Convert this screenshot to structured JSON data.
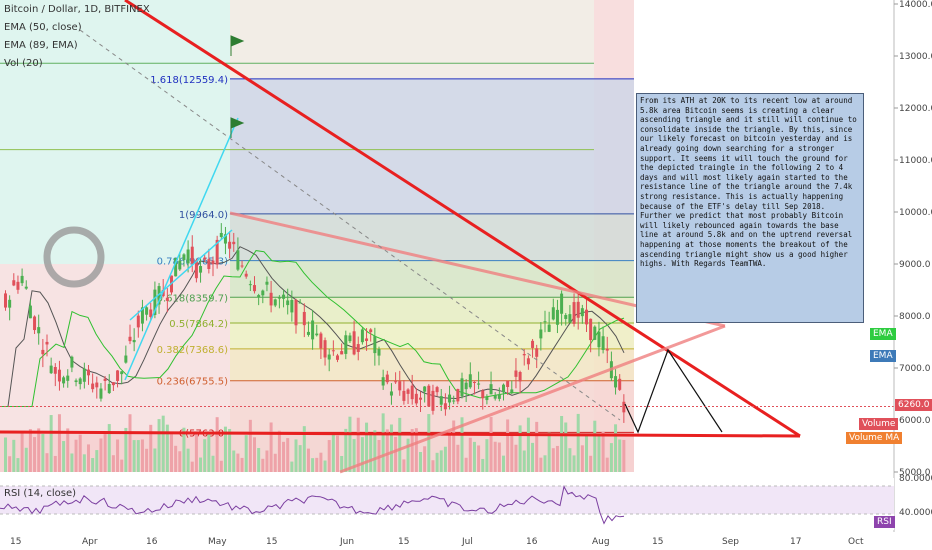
{
  "header": {
    "symbol_title": "Bitcoin / Dollar, 1D, BITFINEX",
    "ema50_label": "EMA (50, close)",
    "ema89_label": "EMA (89, EMA)",
    "vol_label": "Vol (20)",
    "rsi_label": "RSI (14, close)"
  },
  "note_text": "From its ATH at 20K to its recent low at around 5.8k area Bitcoin seems is creating a clear ascending triangle and it still will continue to consolidate inside the triangle. By this, since our likely forecast on bitcoin yesterday and is already going down searching for a stronger support. It seems it will touch the ground for the depicted traingle in the following 2 to 4 days and will most likely again started to the resistance line of the triangle around the 7.4k strong resistance. This is actually happening because of the ETF's delay till Sep 2018. Further we predict that most probably Bitcoin will likely rebounced again towards the base line at around 5.8k and on the uptrend reversal happening at those moments the breakout of the ascending triangle might show us a good higher highs. With Regards TeamTWA.",
  "tags": {
    "ema1": "EMA",
    "ema2": "EMA",
    "price": "6260.0",
    "volume": "Volume",
    "volume_ma": "Volume MA",
    "rsi": "RSI"
  },
  "colors": {
    "up": "#4caf50",
    "down": "#e0505a",
    "trend_red": "#e82020",
    "ema50": "#555555",
    "ema89": "#30c030",
    "rsi_line": "#7b3fa0",
    "note_bg": "#b7cce6",
    "price_tag": "#e0505a",
    "ema_tag_green": "#2ecc40",
    "ema_tag_blue": "#3d7ab8",
    "volume_ma_tag": "#f08030",
    "rsi_tag": "#8e44ad"
  },
  "chart_data": {
    "type": "candlestick",
    "y_axis_ticks": [
      "14000.0",
      "13000.0",
      "12000.0",
      "11000.0",
      "10000.0",
      "9000.0",
      "8000.0",
      "7000.0",
      "6000.0",
      "5000.0"
    ],
    "ylim": [
      5000,
      14000
    ],
    "x_axis_ticks": [
      "15",
      "Apr",
      "16",
      "May",
      "15",
      "Jun",
      "15",
      "Jul",
      "16",
      "Aug",
      "15",
      "Sep",
      "17",
      "Oct"
    ],
    "rsi_ticks": [
      "80.0000",
      "40.0000"
    ],
    "fib_levels": [
      {
        "label": "1.618(12559.4)",
        "value": 12559.4
      },
      {
        "label": "1(9964.0)",
        "value": 9964.0
      },
      {
        "label": "0.786(9065.3)",
        "value": 9065.3
      },
      {
        "label": "0.618(8359.7)",
        "value": 8359.7
      },
      {
        "label": "0.5(7864.2)",
        "value": 7864.2
      },
      {
        "label": "0.382(7368.6)",
        "value": 7368.6
      },
      {
        "label": "0.236(6755.5)",
        "value": 6755.5
      },
      {
        "label": "0(5763.0)",
        "value": 5763.0
      }
    ],
    "current_price": 6260.0
  }
}
